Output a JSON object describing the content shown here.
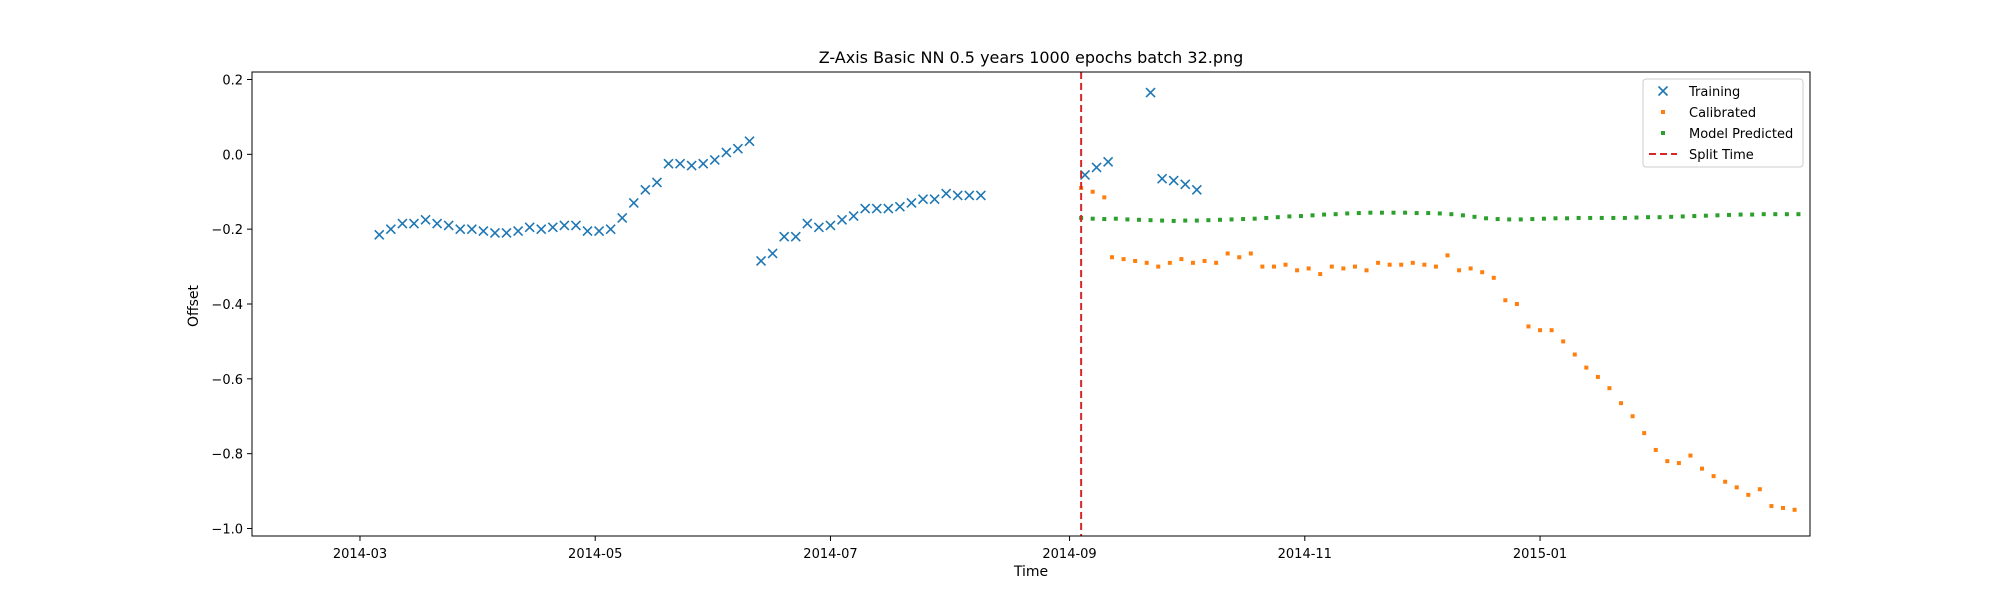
{
  "chart_data": {
    "type": "scatter",
    "title": "Z-Axis Basic NN 0.5 years 1000 epochs batch 32.png",
    "xlabel": "Time",
    "ylabel": "Offset",
    "xlim": [
      "2014-02-01",
      "2015-03-12"
    ],
    "ylim": [
      -1.02,
      0.22
    ],
    "xticks": [
      {
        "date": "2014-03-01",
        "label": "2014-03"
      },
      {
        "date": "2014-05-01",
        "label": "2014-05"
      },
      {
        "date": "2014-07-01",
        "label": "2014-07"
      },
      {
        "date": "2014-09-01",
        "label": "2014-09"
      },
      {
        "date": "2014-11-01",
        "label": "2014-11"
      },
      {
        "date": "2015-01-01",
        "label": "2015-01"
      }
    ],
    "yticks": [
      {
        "value": 0.2,
        "label": "0.2"
      },
      {
        "value": 0.0,
        "label": "0.0"
      },
      {
        "value": -0.2,
        "label": "−0.2"
      },
      {
        "value": -0.4,
        "label": "−0.4"
      },
      {
        "value": -0.6,
        "label": "−0.6"
      },
      {
        "value": -0.8,
        "label": "−0.8"
      },
      {
        "value": -1.0,
        "label": "−1.0"
      }
    ],
    "grid": false,
    "legend": "top-right",
    "legend_items": [
      {
        "name": "Training",
        "marker": "x",
        "color": "#1f77b4"
      },
      {
        "name": "Calibrated",
        "marker": "dot",
        "color": "#ff7f0e"
      },
      {
        "name": "Model Predicted",
        "marker": "dot",
        "color": "#2ca02c"
      },
      {
        "name": "Split Time",
        "marker": "dashed-line",
        "color": "#d62728"
      }
    ],
    "split_time": {
      "date": "2014-09-04",
      "color": "#d62728"
    },
    "series": [
      {
        "name": "Training",
        "marker": "x",
        "color": "#1f77b4",
        "points": [
          [
            "2014-03-06",
            -0.215
          ],
          [
            "2014-03-09",
            -0.2
          ],
          [
            "2014-03-12",
            -0.185
          ],
          [
            "2014-03-15",
            -0.185
          ],
          [
            "2014-03-18",
            -0.175
          ],
          [
            "2014-03-21",
            -0.185
          ],
          [
            "2014-03-24",
            -0.19
          ],
          [
            "2014-03-27",
            -0.2
          ],
          [
            "2014-03-30",
            -0.2
          ],
          [
            "2014-04-02",
            -0.205
          ],
          [
            "2014-04-05",
            -0.21
          ],
          [
            "2014-04-08",
            -0.21
          ],
          [
            "2014-04-11",
            -0.205
          ],
          [
            "2014-04-14",
            -0.195
          ],
          [
            "2014-04-17",
            -0.2
          ],
          [
            "2014-04-20",
            -0.195
          ],
          [
            "2014-04-23",
            -0.19
          ],
          [
            "2014-04-26",
            -0.19
          ],
          [
            "2014-04-29",
            -0.205
          ],
          [
            "2014-05-02",
            -0.205
          ],
          [
            "2014-05-05",
            -0.2
          ],
          [
            "2014-05-08",
            -0.17
          ],
          [
            "2014-05-11",
            -0.13
          ],
          [
            "2014-05-14",
            -0.095
          ],
          [
            "2014-05-17",
            -0.075
          ],
          [
            "2014-05-20",
            -0.025
          ],
          [
            "2014-05-23",
            -0.025
          ],
          [
            "2014-05-26",
            -0.03
          ],
          [
            "2014-05-29",
            -0.025
          ],
          [
            "2014-06-01",
            -0.015
          ],
          [
            "2014-06-04",
            0.005
          ],
          [
            "2014-06-07",
            0.015
          ],
          [
            "2014-06-10",
            0.035
          ],
          [
            "2014-06-13",
            -0.285
          ],
          [
            "2014-06-16",
            -0.265
          ],
          [
            "2014-06-19",
            -0.22
          ],
          [
            "2014-06-22",
            -0.22
          ],
          [
            "2014-06-25",
            -0.185
          ],
          [
            "2014-06-28",
            -0.195
          ],
          [
            "2014-07-01",
            -0.19
          ],
          [
            "2014-07-04",
            -0.175
          ],
          [
            "2014-07-07",
            -0.165
          ],
          [
            "2014-07-10",
            -0.145
          ],
          [
            "2014-07-13",
            -0.145
          ],
          [
            "2014-07-16",
            -0.145
          ],
          [
            "2014-07-19",
            -0.14
          ],
          [
            "2014-07-22",
            -0.13
          ],
          [
            "2014-07-25",
            -0.12
          ],
          [
            "2014-07-28",
            -0.12
          ],
          [
            "2014-07-31",
            -0.105
          ],
          [
            "2014-08-03",
            -0.11
          ],
          [
            "2014-08-06",
            -0.11
          ],
          [
            "2014-08-09",
            -0.11
          ],
          [
            "2014-09-05",
            -0.055
          ],
          [
            "2014-09-08",
            -0.035
          ],
          [
            "2014-09-11",
            -0.02
          ],
          [
            "2014-09-22",
            0.165
          ],
          [
            "2014-09-25",
            -0.065
          ],
          [
            "2014-09-28",
            -0.07
          ],
          [
            "2014-10-01",
            -0.08
          ],
          [
            "2014-10-04",
            -0.095
          ]
        ]
      },
      {
        "name": "Calibrated",
        "marker": "dot",
        "color": "#ff7f0e",
        "points": [
          [
            "2014-09-04",
            -0.09
          ],
          [
            "2014-09-07",
            -0.1
          ],
          [
            "2014-09-10",
            -0.115
          ],
          [
            "2014-09-12",
            -0.275
          ],
          [
            "2014-09-15",
            -0.28
          ],
          [
            "2014-09-18",
            -0.285
          ],
          [
            "2014-09-21",
            -0.29
          ],
          [
            "2014-09-24",
            -0.3
          ],
          [
            "2014-09-27",
            -0.29
          ],
          [
            "2014-09-30",
            -0.28
          ],
          [
            "2014-10-03",
            -0.29
          ],
          [
            "2014-10-06",
            -0.285
          ],
          [
            "2014-10-09",
            -0.29
          ],
          [
            "2014-10-12",
            -0.265
          ],
          [
            "2014-10-15",
            -0.275
          ],
          [
            "2014-10-18",
            -0.265
          ],
          [
            "2014-10-21",
            -0.3
          ],
          [
            "2014-10-24",
            -0.3
          ],
          [
            "2014-10-27",
            -0.295
          ],
          [
            "2014-10-30",
            -0.31
          ],
          [
            "2014-11-02",
            -0.305
          ],
          [
            "2014-11-05",
            -0.32
          ],
          [
            "2014-11-08",
            -0.3
          ],
          [
            "2014-11-11",
            -0.305
          ],
          [
            "2014-11-14",
            -0.3
          ],
          [
            "2014-11-17",
            -0.31
          ],
          [
            "2014-11-20",
            -0.29
          ],
          [
            "2014-11-23",
            -0.295
          ],
          [
            "2014-11-26",
            -0.295
          ],
          [
            "2014-11-29",
            -0.29
          ],
          [
            "2014-12-02",
            -0.295
          ],
          [
            "2014-12-05",
            -0.3
          ],
          [
            "2014-12-08",
            -0.27
          ],
          [
            "2014-12-11",
            -0.31
          ],
          [
            "2014-12-14",
            -0.305
          ],
          [
            "2014-12-17",
            -0.315
          ],
          [
            "2014-12-20",
            -0.33
          ],
          [
            "2014-12-23",
            -0.39
          ],
          [
            "2014-12-26",
            -0.4
          ],
          [
            "2014-12-29",
            -0.46
          ],
          [
            "2015-01-01",
            -0.47
          ],
          [
            "2015-01-04",
            -0.47
          ],
          [
            "2015-01-07",
            -0.5
          ],
          [
            "2015-01-10",
            -0.535
          ],
          [
            "2015-01-13",
            -0.57
          ],
          [
            "2015-01-16",
            -0.595
          ],
          [
            "2015-01-19",
            -0.625
          ],
          [
            "2015-01-22",
            -0.665
          ],
          [
            "2015-01-25",
            -0.7
          ],
          [
            "2015-01-28",
            -0.745
          ],
          [
            "2015-01-31",
            -0.79
          ],
          [
            "2015-02-03",
            -0.82
          ],
          [
            "2015-02-06",
            -0.825
          ],
          [
            "2015-02-09",
            -0.805
          ],
          [
            "2015-02-12",
            -0.84
          ],
          [
            "2015-02-15",
            -0.86
          ],
          [
            "2015-02-18",
            -0.875
          ],
          [
            "2015-02-21",
            -0.89
          ],
          [
            "2015-02-24",
            -0.91
          ],
          [
            "2015-02-27",
            -0.895
          ],
          [
            "2015-03-02",
            -0.94
          ],
          [
            "2015-03-05",
            -0.945
          ],
          [
            "2015-03-08",
            -0.95
          ]
        ]
      },
      {
        "name": "Model Predicted",
        "marker": "dot",
        "color": "#2ca02c",
        "points": [
          [
            "2014-09-04",
            -0.17
          ],
          [
            "2014-09-07",
            -0.172
          ],
          [
            "2014-09-10",
            -0.173
          ],
          [
            "2014-09-13",
            -0.172
          ],
          [
            "2014-09-16",
            -0.174
          ],
          [
            "2014-09-19",
            -0.175
          ],
          [
            "2014-09-22",
            -0.176
          ],
          [
            "2014-09-25",
            -0.177
          ],
          [
            "2014-09-28",
            -0.178
          ],
          [
            "2014-10-01",
            -0.177
          ],
          [
            "2014-10-04",
            -0.177
          ],
          [
            "2014-10-07",
            -0.176
          ],
          [
            "2014-10-10",
            -0.175
          ],
          [
            "2014-10-13",
            -0.174
          ],
          [
            "2014-10-16",
            -0.173
          ],
          [
            "2014-10-19",
            -0.172
          ],
          [
            "2014-10-22",
            -0.17
          ],
          [
            "2014-10-25",
            -0.168
          ],
          [
            "2014-10-28",
            -0.166
          ],
          [
            "2014-10-31",
            -0.165
          ],
          [
            "2014-11-03",
            -0.163
          ],
          [
            "2014-11-06",
            -0.161
          ],
          [
            "2014-11-09",
            -0.16
          ],
          [
            "2014-11-12",
            -0.158
          ],
          [
            "2014-11-15",
            -0.157
          ],
          [
            "2014-11-18",
            -0.156
          ],
          [
            "2014-11-21",
            -0.156
          ],
          [
            "2014-11-24",
            -0.156
          ],
          [
            "2014-11-27",
            -0.156
          ],
          [
            "2014-11-30",
            -0.157
          ],
          [
            "2014-12-03",
            -0.157
          ],
          [
            "2014-12-06",
            -0.158
          ],
          [
            "2014-12-09",
            -0.16
          ],
          [
            "2014-12-12",
            -0.163
          ],
          [
            "2014-12-15",
            -0.167
          ],
          [
            "2014-12-18",
            -0.171
          ],
          [
            "2014-12-21",
            -0.173
          ],
          [
            "2014-12-24",
            -0.174
          ],
          [
            "2014-12-27",
            -0.174
          ],
          [
            "2014-12-30",
            -0.173
          ],
          [
            "2015-01-02",
            -0.172
          ],
          [
            "2015-01-05",
            -0.171
          ],
          [
            "2015-01-08",
            -0.171
          ],
          [
            "2015-01-11",
            -0.17
          ],
          [
            "2015-01-14",
            -0.17
          ],
          [
            "2015-01-17",
            -0.17
          ],
          [
            "2015-01-20",
            -0.17
          ],
          [
            "2015-01-23",
            -0.17
          ],
          [
            "2015-01-26",
            -0.169
          ],
          [
            "2015-01-29",
            -0.168
          ],
          [
            "2015-02-01",
            -0.168
          ],
          [
            "2015-02-04",
            -0.167
          ],
          [
            "2015-02-07",
            -0.166
          ],
          [
            "2015-02-10",
            -0.165
          ],
          [
            "2015-02-13",
            -0.164
          ],
          [
            "2015-02-16",
            -0.163
          ],
          [
            "2015-02-19",
            -0.162
          ],
          [
            "2015-02-22",
            -0.161
          ],
          [
            "2015-02-25",
            -0.161
          ],
          [
            "2015-02-28",
            -0.16
          ],
          [
            "2015-03-03",
            -0.16
          ],
          [
            "2015-03-06",
            -0.16
          ],
          [
            "2015-03-09",
            -0.16
          ]
        ]
      }
    ]
  }
}
